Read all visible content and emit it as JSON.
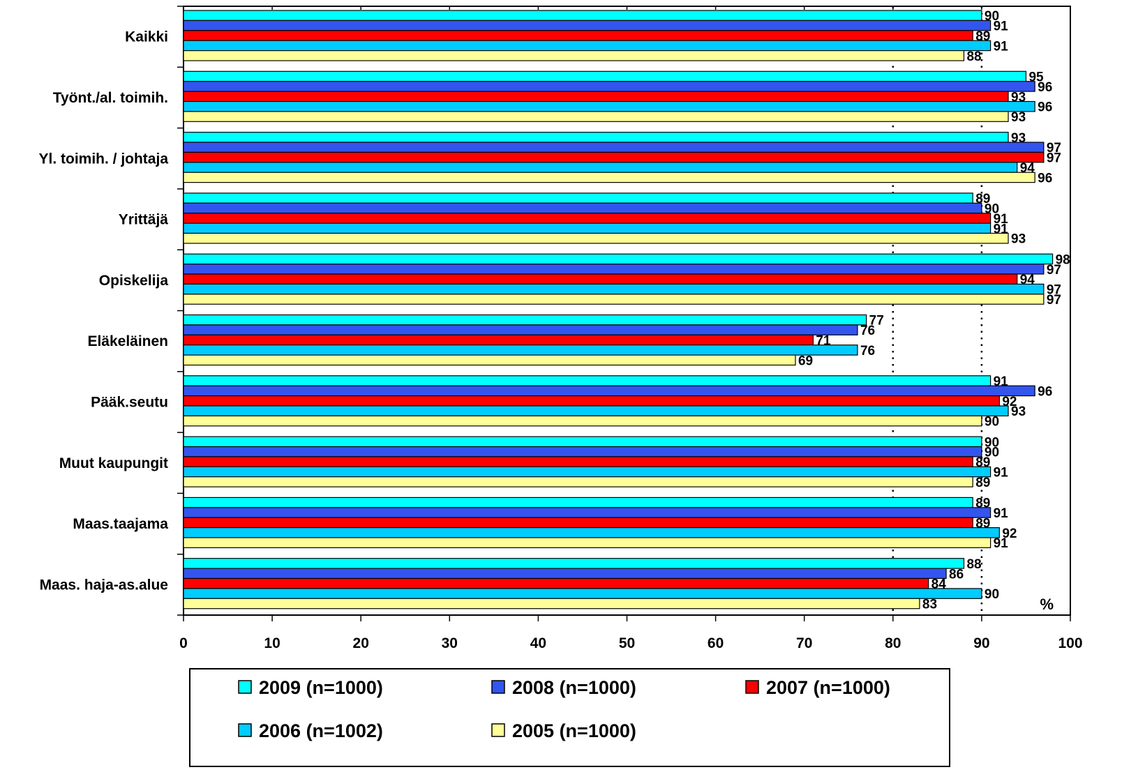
{
  "chart_data": {
    "type": "bar",
    "orientation": "horizontal",
    "categories": [
      "Kaikki",
      "Työnt./al. toimih.",
      "Yl. toimih. / johtaja",
      "Yrittäjä",
      "Opiskelija",
      "Eläkeläinen",
      "Pääk.seutu",
      "Muut kaupungit",
      "Maas.taajama",
      "Maas. haja-as.alue"
    ],
    "series": [
      {
        "name": "2009 (n=1000)",
        "color": "#00FFFF",
        "values": [
          90,
          95,
          93,
          89,
          98,
          77,
          91,
          90,
          89,
          88
        ]
      },
      {
        "name": "2008 (n=1000)",
        "color": "#3355EE",
        "values": [
          91,
          96,
          97,
          90,
          97,
          76,
          96,
          90,
          91,
          86
        ]
      },
      {
        "name": "2007 (n=1000)",
        "color": "#FF0000",
        "values": [
          89,
          93,
          97,
          91,
          94,
          71,
          92,
          89,
          89,
          84
        ]
      },
      {
        "name": "2006 (n=1002)",
        "color": "#00CCFF",
        "values": [
          91,
          96,
          94,
          91,
          97,
          76,
          93,
          91,
          92,
          90
        ]
      },
      {
        "name": "2005 (n=1000)",
        "color": "#FFFF99",
        "values": [
          88,
          93,
          96,
          93,
          97,
          69,
          90,
          89,
          91,
          83
        ]
      }
    ],
    "xlim": [
      0,
      100
    ],
    "xticks": [
      0,
      10,
      20,
      30,
      40,
      50,
      60,
      70,
      80,
      90,
      100
    ],
    "unit_label": "%",
    "reference_lines": [
      80,
      90
    ],
    "grid": false,
    "legend_position": "bottom"
  }
}
